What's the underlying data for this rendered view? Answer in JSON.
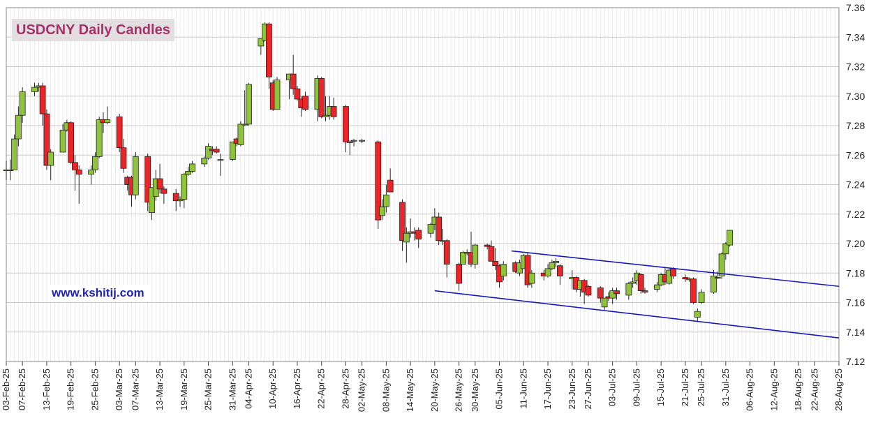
{
  "title": "USDCNY Daily Candles",
  "watermark": "www.kshitij.com",
  "colors": {
    "up": "#8fc43a",
    "down": "#e8262a",
    "channel": "#1a1ab8",
    "grid": "#c8c8c8",
    "title_bg": "#e3dee0",
    "title_text": "#a3326a"
  },
  "chart_data": {
    "type": "candlestick",
    "title": "USDCNY Daily Candles",
    "ylim": [
      7.12,
      7.36
    ],
    "y_ticks": [
      "7.12",
      "7.14",
      "7.16",
      "7.18",
      "7.20",
      "7.22",
      "7.24",
      "7.26",
      "7.28",
      "7.30",
      "7.32",
      "7.34",
      "7.36"
    ],
    "x_range": [
      "2025-02-03",
      "2025-08-28"
    ],
    "x_ticks": [
      "03-Feb-25",
      "07-Feb-25",
      "13-Feb-25",
      "19-Feb-25",
      "25-Feb-25",
      "03-Mar-25",
      "07-Mar-25",
      "13-Mar-25",
      "19-Mar-25",
      "25-Mar-25",
      "31-Mar-25",
      "04-Apr-25",
      "10-Apr-25",
      "16-Apr-25",
      "22-Apr-25",
      "28-Apr-25",
      "02-May-25",
      "08-May-25",
      "14-May-25",
      "20-May-25",
      "26-May-25",
      "30-May-25",
      "05-Jun-25",
      "11-Jun-25",
      "17-Jun-25",
      "23-Jun-25",
      "27-Jun-25",
      "03-Jul-25",
      "09-Jul-25",
      "15-Jul-25",
      "21-Jul-25",
      "25-Jul-25",
      "31-Jul-25",
      "06-Aug-25",
      "12-Aug-25",
      "18-Aug-25",
      "22-Aug-25",
      "28-Aug-25"
    ],
    "grid": true,
    "candles": [
      {
        "d": "2025-02-03",
        "o": 7.25,
        "h": 7.256,
        "l": 7.243,
        "c": 7.25
      },
      {
        "d": "2025-02-04",
        "o": 7.25,
        "h": 7.257,
        "l": 7.243,
        "c": 7.25
      },
      {
        "d": "2025-02-05",
        "o": 7.25,
        "h": 7.274,
        "l": 7.25,
        "c": 7.271
      },
      {
        "d": "2025-02-06",
        "o": 7.271,
        "h": 7.293,
        "l": 7.266,
        "c": 7.287
      },
      {
        "d": "2025-02-07",
        "o": 7.287,
        "h": 7.306,
        "l": 7.282,
        "c": 7.303
      },
      {
        "d": "2025-02-10",
        "o": 7.303,
        "h": 7.309,
        "l": 7.3,
        "c": 7.306
      },
      {
        "d": "2025-02-11",
        "o": 7.306,
        "h": 7.309,
        "l": 7.303,
        "c": 7.307
      },
      {
        "d": "2025-02-12",
        "o": 7.307,
        "h": 7.309,
        "l": 7.28,
        "c": 7.288
      },
      {
        "d": "2025-02-13",
        "o": 7.288,
        "h": 7.291,
        "l": 7.25,
        "c": 7.253
      },
      {
        "d": "2025-02-14",
        "o": 7.253,
        "h": 7.264,
        "l": 7.243,
        "c": 7.262
      },
      {
        "d": "2025-02-17",
        "o": 7.262,
        "h": 7.281,
        "l": 7.262,
        "c": 7.277
      },
      {
        "d": "2025-02-18",
        "o": 7.277,
        "h": 7.284,
        "l": 7.276,
        "c": 7.282
      },
      {
        "d": "2025-02-19",
        "o": 7.282,
        "h": 7.283,
        "l": 7.254,
        "c": 7.255
      },
      {
        "d": "2025-02-20",
        "o": 7.255,
        "h": 7.26,
        "l": 7.236,
        "c": 7.25
      },
      {
        "d": "2025-02-21",
        "o": 7.25,
        "h": 7.253,
        "l": 7.227,
        "c": 7.247
      },
      {
        "d": "2025-02-24",
        "o": 7.247,
        "h": 7.253,
        "l": 7.24,
        "c": 7.25
      },
      {
        "d": "2025-02-25",
        "o": 7.25,
        "h": 7.262,
        "l": 7.248,
        "c": 7.259
      },
      {
        "d": "2025-02-26",
        "o": 7.259,
        "h": 7.286,
        "l": 7.258,
        "c": 7.284
      },
      {
        "d": "2025-02-27",
        "o": 7.284,
        "h": 7.289,
        "l": 7.275,
        "c": 7.282
      },
      {
        "d": "2025-02-28",
        "o": 7.282,
        "h": 7.293,
        "l": 7.281,
        "c": 7.284
      },
      {
        "d": "2025-03-03",
        "o": 7.286,
        "h": 7.288,
        "l": 7.262,
        "c": 7.265
      },
      {
        "d": "2025-03-04",
        "o": 7.265,
        "h": 7.271,
        "l": 7.248,
        "c": 7.251
      },
      {
        "d": "2025-03-05",
        "o": 7.245,
        "h": 7.246,
        "l": 7.236,
        "c": 7.24
      },
      {
        "d": "2025-03-06",
        "o": 7.245,
        "h": 7.246,
        "l": 7.225,
        "c": 7.233
      },
      {
        "d": "2025-03-07",
        "o": 7.233,
        "h": 7.262,
        "l": 7.23,
        "c": 7.259
      },
      {
        "d": "2025-03-10",
        "o": 7.259,
        "h": 7.261,
        "l": 7.222,
        "c": 7.228
      },
      {
        "d": "2025-03-11",
        "o": 7.221,
        "h": 7.238,
        "l": 7.216,
        "c": 7.238
      },
      {
        "d": "2025-03-12",
        "o": 7.232,
        "h": 7.25,
        "l": 7.229,
        "c": 7.244
      },
      {
        "d": "2025-03-13",
        "o": 7.244,
        "h": 7.254,
        "l": 7.234,
        "c": 7.237
      },
      {
        "d": "2025-03-14",
        "o": 7.237,
        "h": 7.239,
        "l": 7.227,
        "c": 7.234
      },
      {
        "d": "2025-03-17",
        "o": 7.234,
        "h": 7.237,
        "l": 7.222,
        "c": 7.229
      },
      {
        "d": "2025-03-18",
        "o": 7.229,
        "h": 7.232,
        "l": 7.225,
        "c": 7.23
      },
      {
        "d": "2025-03-19",
        "o": 7.23,
        "h": 7.248,
        "l": 7.224,
        "c": 7.247
      },
      {
        "d": "2025-03-20",
        "o": 7.247,
        "h": 7.252,
        "l": 7.246,
        "c": 7.249
      },
      {
        "d": "2025-03-21",
        "o": 7.249,
        "h": 7.256,
        "l": 7.248,
        "c": 7.254
      },
      {
        "d": "2025-03-24",
        "o": 7.254,
        "h": 7.259,
        "l": 7.252,
        "c": 7.258
      },
      {
        "d": "2025-03-25",
        "o": 7.258,
        "h": 7.268,
        "l": 7.257,
        "c": 7.266
      },
      {
        "d": "2025-03-26",
        "o": 7.264,
        "h": 7.266,
        "l": 7.26,
        "c": 7.263
      },
      {
        "d": "2025-03-27",
        "o": 7.264,
        "h": 7.266,
        "l": 7.261,
        "c": 7.262
      },
      {
        "d": "2025-03-28",
        "o": 7.257,
        "h": 7.261,
        "l": 7.246,
        "c": 7.257
      },
      {
        "d": "2025-03-31",
        "o": 7.257,
        "h": 7.269,
        "l": 7.256,
        "c": 7.269
      },
      {
        "d": "2025-04-01",
        "o": 7.271,
        "h": 7.272,
        "l": 7.266,
        "c": 7.268
      },
      {
        "d": "2025-04-02",
        "o": 7.267,
        "h": 7.283,
        "l": 7.266,
        "c": 7.281
      },
      {
        "d": "2025-04-03",
        "o": 7.281,
        "h": 7.304,
        "l": 7.28,
        "c": 7.281
      },
      {
        "d": "2025-04-04",
        "o": 7.281,
        "h": 7.309,
        "l": 7.28,
        "c": 7.308
      },
      {
        "d": "2025-04-07",
        "o": 7.334,
        "h": 7.339,
        "l": 7.328,
        "c": 7.339
      },
      {
        "d": "2025-04-08",
        "o": 7.338,
        "h": 7.35,
        "l": 7.337,
        "c": 7.349
      },
      {
        "d": "2025-04-09",
        "o": 7.349,
        "h": 7.35,
        "l": 7.305,
        "c": 7.313
      },
      {
        "d": "2025-04-10",
        "o": 7.309,
        "h": 7.311,
        "l": 7.29,
        "c": 7.291
      },
      {
        "d": "2025-04-11",
        "o": 7.291,
        "h": 7.313,
        "l": 7.291,
        "c": 7.311
      },
      {
        "d": "2025-04-14",
        "o": 7.311,
        "h": 7.315,
        "l": 7.298,
        "c": 7.315
      },
      {
        "d": "2025-04-15",
        "o": 7.315,
        "h": 7.328,
        "l": 7.301,
        "c": 7.305
      },
      {
        "d": "2025-04-16",
        "o": 7.305,
        "h": 7.307,
        "l": 7.297,
        "c": 7.298
      },
      {
        "d": "2025-04-17",
        "o": 7.298,
        "h": 7.3,
        "l": 7.286,
        "c": 7.292
      },
      {
        "d": "2025-04-18",
        "o": 7.3,
        "h": 7.303,
        "l": 7.29,
        "c": 7.291
      },
      {
        "d": "2025-04-21",
        "o": 7.291,
        "h": 7.314,
        "l": 7.283,
        "c": 7.312
      },
      {
        "d": "2025-04-22",
        "o": 7.312,
        "h": 7.313,
        "l": 7.285,
        "c": 7.286
      },
      {
        "d": "2025-04-23",
        "o": 7.286,
        "h": 7.3,
        "l": 7.283,
        "c": 7.287
      },
      {
        "d": "2025-04-24",
        "o": 7.287,
        "h": 7.3,
        "l": 7.284,
        "c": 7.293
      },
      {
        "d": "2025-04-25",
        "o": 7.293,
        "h": 7.299,
        "l": 7.284,
        "c": 7.286
      },
      {
        "d": "2025-04-28",
        "o": 7.293,
        "h": 7.294,
        "l": 7.262,
        "c": 7.269
      },
      {
        "d": "2025-04-29",
        "o": 7.269,
        "h": 7.27,
        "l": 7.26,
        "c": 7.269
      },
      {
        "d": "2025-04-30",
        "o": 7.27,
        "h": 7.271,
        "l": 7.266,
        "c": 7.27
      },
      {
        "d": "2025-05-02",
        "o": 7.27,
        "h": 7.271,
        "l": 7.268,
        "c": 7.27
      },
      {
        "d": "2025-05-06",
        "o": 7.269,
        "h": 7.27,
        "l": 7.21,
        "c": 7.216
      },
      {
        "d": "2025-05-07",
        "o": 7.219,
        "h": 7.23,
        "l": 7.216,
        "c": 7.225
      },
      {
        "d": "2025-05-08",
        "o": 7.225,
        "h": 7.24,
        "l": 7.221,
        "c": 7.233
      },
      {
        "d": "2025-05-09",
        "o": 7.243,
        "h": 7.251,
        "l": 7.235,
        "c": 7.235
      },
      {
        "d": "2025-05-12",
        "o": 7.228,
        "h": 7.23,
        "l": 7.195,
        "c": 7.202
      },
      {
        "d": "2025-05-13",
        "o": 7.201,
        "h": 7.211,
        "l": 7.187,
        "c": 7.207
      },
      {
        "d": "2025-05-14",
        "o": 7.207,
        "h": 7.217,
        "l": 7.204,
        "c": 7.208
      },
      {
        "d": "2025-05-15",
        "o": 7.208,
        "h": 7.211,
        "l": 7.202,
        "c": 7.207
      },
      {
        "d": "2025-05-16",
        "o": 7.209,
        "h": 7.211,
        "l": 7.197,
        "c": 7.203
      },
      {
        "d": "2025-05-19",
        "o": 7.207,
        "h": 7.214,
        "l": 7.204,
        "c": 7.213
      },
      {
        "d": "2025-05-20",
        "o": 7.213,
        "h": 7.224,
        "l": 7.209,
        "c": 7.218
      },
      {
        "d": "2025-05-21",
        "o": 7.218,
        "h": 7.221,
        "l": 7.199,
        "c": 7.202
      },
      {
        "d": "2025-05-22",
        "o": 7.202,
        "h": 7.21,
        "l": 7.199,
        "c": 7.202
      },
      {
        "d": "2025-05-23",
        "o": 7.202,
        "h": 7.203,
        "l": 7.177,
        "c": 7.186
      },
      {
        "d": "2025-05-26",
        "o": 7.186,
        "h": 7.187,
        "l": 7.168,
        "c": 7.173
      },
      {
        "d": "2025-05-27",
        "o": 7.186,
        "h": 7.195,
        "l": 7.186,
        "c": 7.194
      },
      {
        "d": "2025-05-28",
        "o": 7.194,
        "h": 7.196,
        "l": 7.192,
        "c": 7.194
      },
      {
        "d": "2025-05-29",
        "o": 7.194,
        "h": 7.208,
        "l": 7.184,
        "c": 7.186
      },
      {
        "d": "2025-05-30",
        "o": 7.186,
        "h": 7.2,
        "l": 7.183,
        "c": 7.199
      },
      {
        "d": "2025-06-02",
        "o": 7.199,
        "h": 7.2,
        "l": 7.196,
        "c": 7.198
      },
      {
        "d": "2025-06-03",
        "o": 7.198,
        "h": 7.202,
        "l": 7.188,
        "c": 7.188
      },
      {
        "d": "2025-06-04",
        "o": 7.188,
        "h": 7.197,
        "l": 7.182,
        "c": 7.185
      },
      {
        "d": "2025-06-05",
        "o": 7.185,
        "h": 7.186,
        "l": 7.17,
        "c": 7.174
      },
      {
        "d": "2025-06-06",
        "o": 7.178,
        "h": 7.188,
        "l": 7.175,
        "c": 7.186
      },
      {
        "d": "2025-06-09",
        "o": 7.187,
        "h": 7.188,
        "l": 7.18,
        "c": 7.181
      },
      {
        "d": "2025-06-10",
        "o": 7.18,
        "h": 7.189,
        "l": 7.178,
        "c": 7.187
      },
      {
        "d": "2025-06-11",
        "o": 7.183,
        "h": 7.193,
        "l": 7.183,
        "c": 7.192
      },
      {
        "d": "2025-06-12",
        "o": 7.192,
        "h": 7.194,
        "l": 7.17,
        "c": 7.172
      },
      {
        "d": "2025-06-13",
        "o": 7.173,
        "h": 7.182,
        "l": 7.17,
        "c": 7.18
      },
      {
        "d": "2025-06-16",
        "o": 7.18,
        "h": 7.182,
        "l": 7.175,
        "c": 7.178
      },
      {
        "d": "2025-06-17",
        "o": 7.178,
        "h": 7.186,
        "l": 7.177,
        "c": 7.183
      },
      {
        "d": "2025-06-18",
        "o": 7.183,
        "h": 7.189,
        "l": 7.182,
        "c": 7.187
      },
      {
        "d": "2025-06-19",
        "o": 7.187,
        "h": 7.19,
        "l": 7.184,
        "c": 7.188
      },
      {
        "d": "2025-06-20",
        "o": 7.185,
        "h": 7.186,
        "l": 7.172,
        "c": 7.178
      },
      {
        "d": "2025-06-23",
        "o": 7.176,
        "h": 7.182,
        "l": 7.169,
        "c": 7.177
      },
      {
        "d": "2025-06-24",
        "o": 7.177,
        "h": 7.178,
        "l": 7.167,
        "c": 7.169
      },
      {
        "d": "2025-06-25",
        "o": 7.169,
        "h": 7.175,
        "l": 7.164,
        "c": 7.175
      },
      {
        "d": "2025-06-26",
        "o": 7.175,
        "h": 7.176,
        "l": 7.159,
        "c": 7.167
      },
      {
        "d": "2025-06-27",
        "o": 7.171,
        "h": 7.172,
        "l": 7.164,
        "c": 7.165
      },
      {
        "d": "2025-06-30",
        "o": 7.17,
        "h": 7.171,
        "l": 7.16,
        "c": 7.163
      },
      {
        "d": "2025-07-01",
        "o": 7.157,
        "h": 7.163,
        "l": 7.155,
        "c": 7.163
      },
      {
        "d": "2025-07-02",
        "o": 7.164,
        "h": 7.167,
        "l": 7.161,
        "c": 7.163
      },
      {
        "d": "2025-07-03",
        "o": 7.163,
        "h": 7.17,
        "l": 7.159,
        "c": 7.168
      },
      {
        "d": "2025-07-04",
        "o": 7.168,
        "h": 7.17,
        "l": 7.162,
        "c": 7.166
      },
      {
        "d": "2025-07-07",
        "o": 7.165,
        "h": 7.174,
        "l": 7.162,
        "c": 7.173
      },
      {
        "d": "2025-07-08",
        "o": 7.173,
        "h": 7.177,
        "l": 7.17,
        "c": 7.174
      },
      {
        "d": "2025-07-09",
        "o": 7.175,
        "h": 7.182,
        "l": 7.172,
        "c": 7.18
      },
      {
        "d": "2025-07-10",
        "o": 7.179,
        "h": 7.18,
        "l": 7.166,
        "c": 7.168
      },
      {
        "d": "2025-07-11",
        "o": 7.168,
        "h": 7.17,
        "l": 7.166,
        "c": 7.167
      },
      {
        "d": "2025-07-14",
        "o": 7.169,
        "h": 7.174,
        "l": 7.167,
        "c": 7.172
      },
      {
        "d": "2025-07-15",
        "o": 7.172,
        "h": 7.18,
        "l": 7.171,
        "c": 7.179
      },
      {
        "d": "2025-07-16",
        "o": 7.179,
        "h": 7.184,
        "l": 7.172,
        "c": 7.174
      },
      {
        "d": "2025-07-17",
        "o": 7.173,
        "h": 7.183,
        "l": 7.172,
        "c": 7.182
      },
      {
        "d": "2025-07-18",
        "o": 7.183,
        "h": 7.184,
        "l": 7.176,
        "c": 7.178
      },
      {
        "d": "2025-07-21",
        "o": 7.177,
        "h": 7.179,
        "l": 7.174,
        "c": 7.176
      },
      {
        "d": "2025-07-22",
        "o": 7.176,
        "h": 7.177,
        "l": 7.174,
        "c": 7.176
      },
      {
        "d": "2025-07-23",
        "o": 7.176,
        "h": 7.177,
        "l": 7.159,
        "c": 7.16
      },
      {
        "d": "2025-07-24",
        "o": 7.15,
        "h": 7.156,
        "l": 7.147,
        "c": 7.154
      },
      {
        "d": "2025-07-25",
        "o": 7.16,
        "h": 7.169,
        "l": 7.159,
        "c": 7.167
      },
      {
        "d": "2025-07-28",
        "o": 7.167,
        "h": 7.182,
        "l": 7.166,
        "c": 7.178
      },
      {
        "d": "2025-07-29",
        "o": 7.177,
        "h": 7.181,
        "l": 7.176,
        "c": 7.177
      },
      {
        "d": "2025-07-30",
        "o": 7.178,
        "h": 7.194,
        "l": 7.176,
        "c": 7.193
      },
      {
        "d": "2025-07-31",
        "o": 7.193,
        "h": 7.201,
        "l": 7.189,
        "c": 7.2
      },
      {
        "d": "2025-08-01",
        "o": 7.199,
        "h": 7.209,
        "l": 7.198,
        "c": 7.209
      }
    ],
    "lines": [
      {
        "name": "upper-channel",
        "from": {
          "d": "2025-06-08",
          "v": 7.195
        },
        "to": {
          "d": "2025-08-28",
          "v": 7.171
        }
      },
      {
        "name": "lower-channel",
        "from": {
          "d": "2025-05-20",
          "v": 7.168
        },
        "to": {
          "d": "2025-08-28",
          "v": 7.136
        }
      }
    ]
  }
}
